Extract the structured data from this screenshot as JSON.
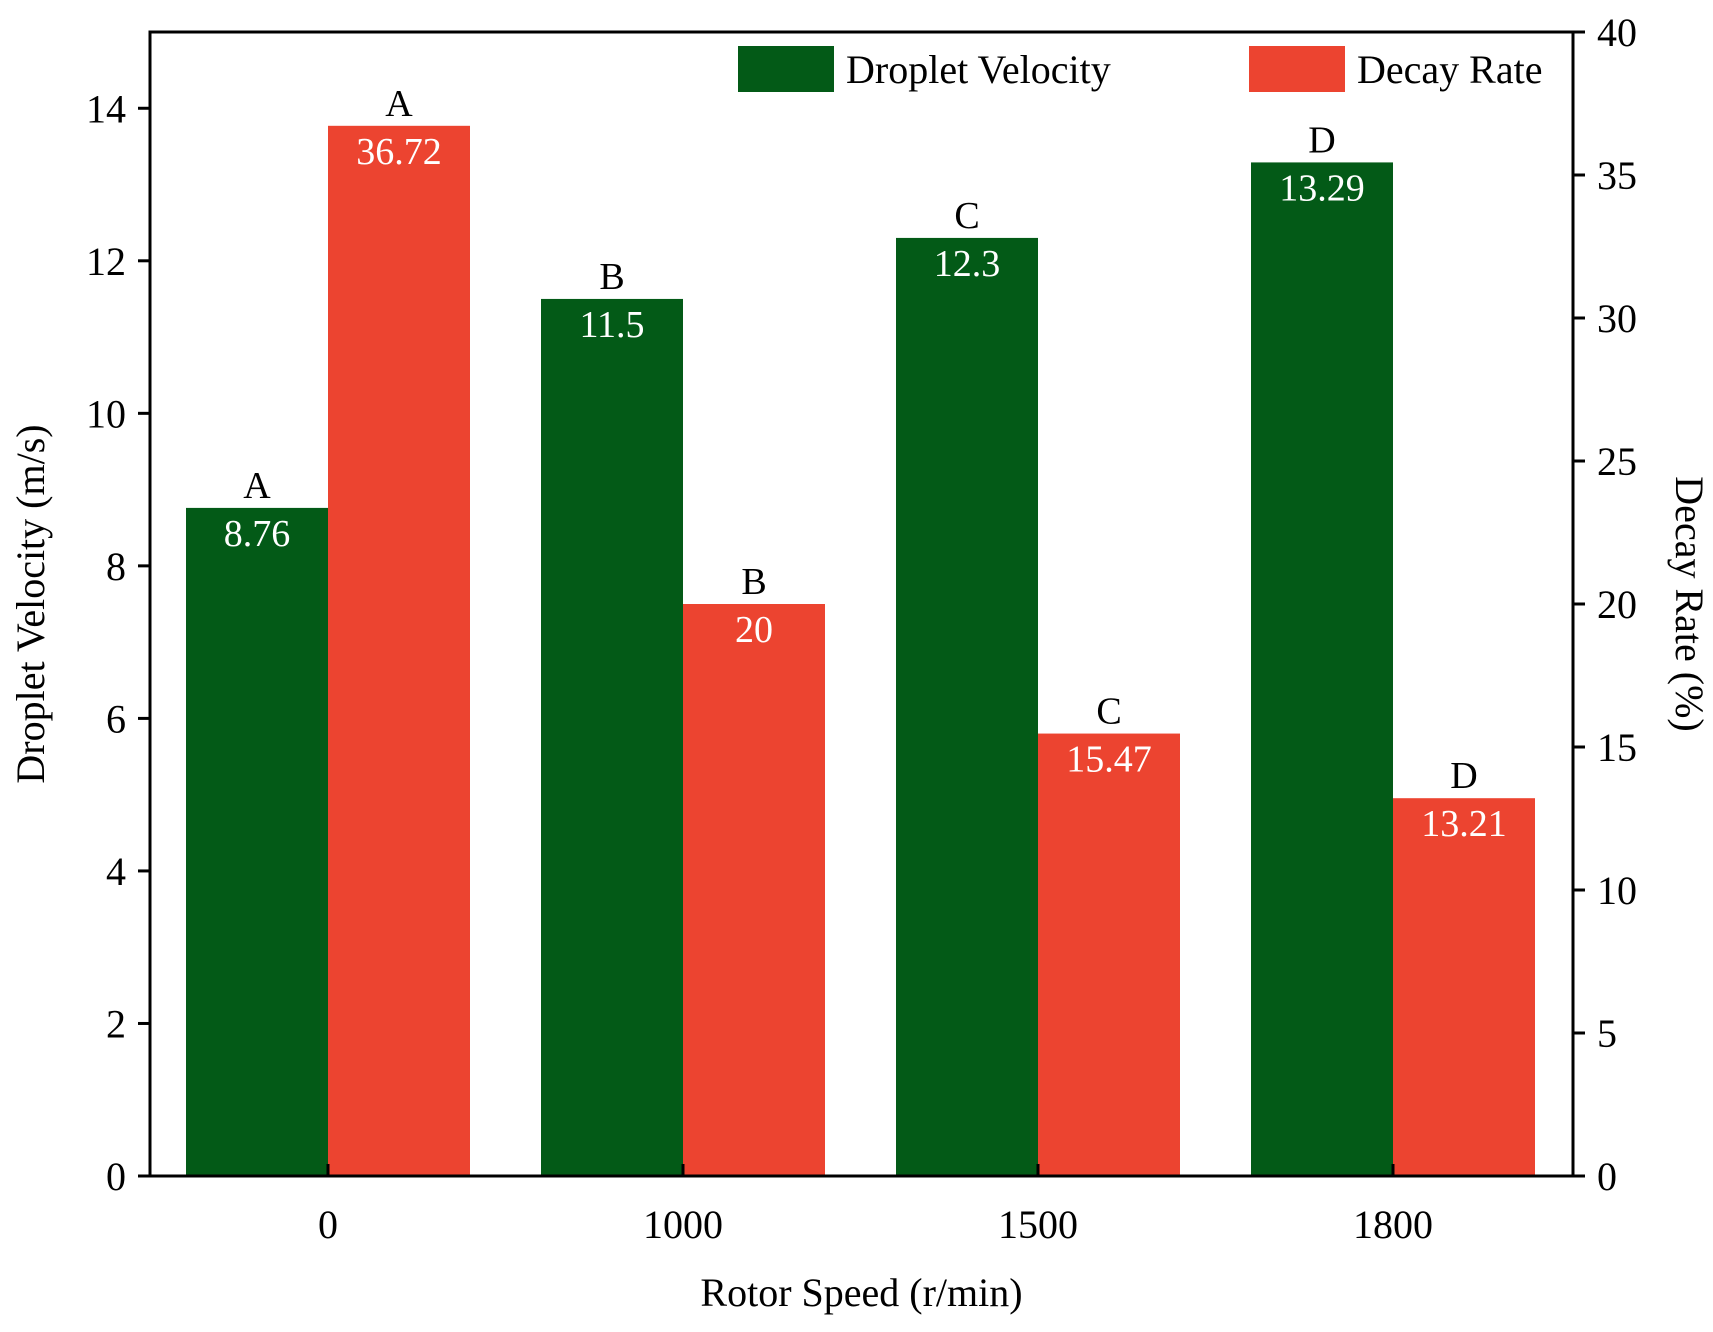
{
  "chart_data": {
    "type": "bar",
    "categories": [
      "0",
      "1000",
      "1500",
      "1800"
    ],
    "xlabel": "Rotor Speed (r/min)",
    "ylabel": "Droplet Velocity (m/s)",
    "y2label": "Decay Rate (%)",
    "ylim": [
      0,
      15
    ],
    "y2lim": [
      0,
      40
    ],
    "yticks": [
      0,
      2,
      4,
      6,
      8,
      10,
      12,
      14
    ],
    "y2ticks": [
      0,
      5,
      10,
      15,
      20,
      25,
      30,
      35,
      40
    ],
    "legend_position": "top-right",
    "grid": false,
    "series": [
      {
        "name": "Droplet Velocity",
        "axis": "left",
        "color": "#035a17",
        "values": [
          8.76,
          11.5,
          12.3,
          13.29
        ],
        "value_labels": [
          "8.76",
          "11.5",
          "12.3",
          "13.29"
        ],
        "group_letters": [
          "A",
          "B",
          "C",
          "D"
        ]
      },
      {
        "name": "Decay Rate",
        "axis": "right",
        "color": "#ec4430",
        "values": [
          36.72,
          20,
          15.47,
          13.21
        ],
        "value_labels": [
          "36.72",
          "20",
          "15.47",
          "13.21"
        ],
        "group_letters": [
          "A",
          "B",
          "C",
          "D"
        ]
      }
    ]
  }
}
